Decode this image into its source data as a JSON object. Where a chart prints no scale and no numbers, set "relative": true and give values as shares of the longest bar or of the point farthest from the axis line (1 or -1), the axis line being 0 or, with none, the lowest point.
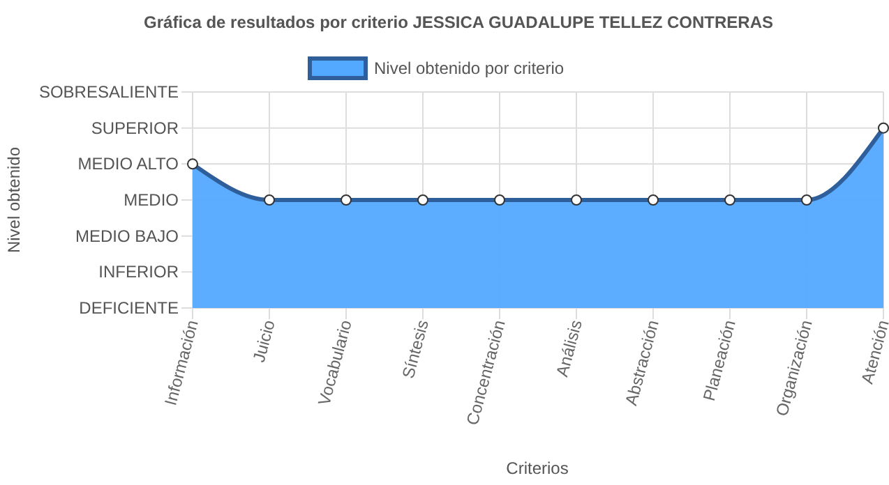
{
  "chart_data": {
    "type": "area",
    "title": "Gráfica de resultados por criterio JESSICA GUADALUPE TELLEZ CONTRERAS",
    "xlabel": "Criterios",
    "annotations": [
      "Nivel obtenido"
    ],
    "categories": [
      "Información",
      "Juicio",
      "Vocabulario",
      "Síntesis",
      "Concentración",
      "Análisis",
      "Abstracción",
      "Planeación",
      "Organización",
      "Atención"
    ],
    "y_categories": [
      "SOBRESALIENTE",
      "SUPERIOR",
      "MEDIO ALTO",
      "MEDIO",
      "MEDIO BAJO",
      "INFERIOR",
      "DEFICIENTE"
    ],
    "relative": true,
    "series": [
      {
        "name": "Nivel obtenido por criterio",
        "color": "#2f5f9a",
        "values": [
          0.8,
          0.6,
          0.6,
          0.6,
          0.6,
          0.6,
          0.6,
          0.6,
          0.6,
          1
        ]
      }
    ],
    "grid": true,
    "legend": "top",
    "marker": "circle"
  }
}
